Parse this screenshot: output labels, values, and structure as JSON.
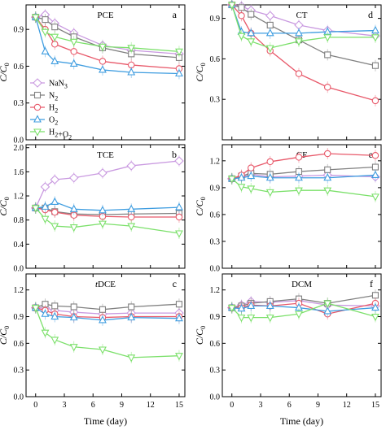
{
  "figure": {
    "ylabel": "C/C0",
    "xlabel": "Time (day)"
  },
  "series_styles": [
    {
      "name": "NaN3",
      "color": "#c999e0",
      "marker": "diamond"
    },
    {
      "name": "N2",
      "color": "#808080",
      "marker": "square"
    },
    {
      "name": "H2",
      "color": "#e8596a",
      "marker": "circle"
    },
    {
      "name": "O2",
      "color": "#3f9de0",
      "marker": "triangle-up"
    },
    {
      "name": "H2+O2",
      "color": "#7be06a",
      "marker": "triangle-down"
    }
  ],
  "chart_data": [
    {
      "type": "line",
      "title": "PCE",
      "panel_letter": "a",
      "x": [
        0,
        1,
        2,
        4,
        7,
        10,
        15
      ],
      "xticks": [
        0,
        3,
        6,
        9,
        12,
        15
      ],
      "ylim": [
        0,
        1.1
      ],
      "yticks": [
        0.0,
        0.3,
        0.6,
        0.9
      ],
      "legend": "left",
      "series": [
        {
          "name": "NaN3",
          "values": [
            1.0,
            1.02,
            0.95,
            0.87,
            0.77,
            0.73,
            0.7
          ]
        },
        {
          "name": "N2",
          "values": [
            1.0,
            0.98,
            0.92,
            0.84,
            0.75,
            0.7,
            0.67
          ]
        },
        {
          "name": "H2",
          "values": [
            1.0,
            0.9,
            0.78,
            0.72,
            0.64,
            0.61,
            0.58
          ]
        },
        {
          "name": "O2",
          "values": [
            1.0,
            0.72,
            0.64,
            0.62,
            0.57,
            0.55,
            0.54
          ]
        },
        {
          "name": "H2+O2",
          "values": [
            1.0,
            0.88,
            0.84,
            0.8,
            0.76,
            0.75,
            0.72
          ]
        }
      ]
    },
    {
      "type": "line",
      "title": "CT",
      "panel_letter": "d",
      "x": [
        0,
        1,
        2,
        4,
        7,
        10,
        15
      ],
      "xticks": [
        0,
        3,
        6,
        9,
        12,
        15
      ],
      "ylim": [
        0,
        1.0
      ],
      "yticks": [
        0.3,
        0.6,
        0.9
      ],
      "series": [
        {
          "name": "NaN3",
          "values": [
            1.0,
            0.99,
            0.96,
            0.92,
            0.85,
            0.81,
            0.77
          ]
        },
        {
          "name": "N2",
          "values": [
            1.0,
            0.98,
            0.93,
            0.85,
            0.74,
            0.63,
            0.55
          ]
        },
        {
          "name": "H2",
          "values": [
            1.0,
            0.92,
            0.79,
            0.66,
            0.49,
            0.39,
            0.29
          ]
        },
        {
          "name": "O2",
          "values": [
            1.0,
            0.8,
            0.79,
            0.79,
            0.79,
            0.8,
            0.81
          ]
        },
        {
          "name": "H2+O2",
          "values": [
            1.0,
            0.77,
            0.73,
            0.68,
            0.73,
            0.76,
            0.76
          ]
        }
      ]
    },
    {
      "type": "line",
      "title": "TCE",
      "panel_letter": "b",
      "x": [
        0,
        1,
        2,
        4,
        7,
        10,
        15
      ],
      "xticks": [
        0,
        3,
        6,
        9,
        12,
        15
      ],
      "ylim": [
        0,
        2.05
      ],
      "yticks": [
        0.0,
        0.4,
        0.8,
        1.2,
        1.6,
        2.0
      ],
      "series": [
        {
          "name": "NaN3",
          "values": [
            1.0,
            1.35,
            1.47,
            1.5,
            1.58,
            1.7,
            1.78
          ]
        },
        {
          "name": "N2",
          "values": [
            1.0,
            1.0,
            0.94,
            0.9,
            0.89,
            0.9,
            0.91
          ]
        },
        {
          "name": "H2",
          "values": [
            1.0,
            0.97,
            0.93,
            0.88,
            0.86,
            0.85,
            0.85
          ]
        },
        {
          "name": "O2",
          "values": [
            1.0,
            1.02,
            1.1,
            0.98,
            0.96,
            0.98,
            1.01
          ]
        },
        {
          "name": "H2+O2",
          "values": [
            1.0,
            0.82,
            0.7,
            0.68,
            0.74,
            0.7,
            0.58
          ]
        }
      ]
    },
    {
      "type": "line",
      "title": "CF",
      "panel_letter": "e",
      "x": [
        0,
        1,
        2,
        4,
        7,
        10,
        15
      ],
      "xticks": [
        0,
        3,
        6,
        9,
        12,
        15
      ],
      "ylim": [
        0,
        1.38
      ],
      "yticks": [
        0.0,
        0.3,
        0.6,
        0.9,
        1.2
      ],
      "series": [
        {
          "name": "NaN3",
          "values": [
            1.0,
            1.02,
            1.05,
            1.02,
            1.03,
            1.04,
            1.02
          ]
        },
        {
          "name": "N2",
          "values": [
            1.0,
            1.03,
            1.06,
            1.05,
            1.08,
            1.1,
            1.13
          ]
        },
        {
          "name": "H2",
          "values": [
            1.0,
            1.04,
            1.12,
            1.19,
            1.24,
            1.28,
            1.26
          ]
        },
        {
          "name": "O2",
          "values": [
            1.0,
            1.01,
            1.03,
            1.01,
            1.01,
            1.01,
            1.04
          ]
        },
        {
          "name": "H2+O2",
          "values": [
            1.0,
            0.91,
            0.89,
            0.85,
            0.87,
            0.87,
            0.8
          ]
        }
      ]
    },
    {
      "type": "line",
      "title": "tDCE",
      "panel_letter": "c",
      "x": [
        0,
        1,
        2,
        4,
        7,
        10,
        15
      ],
      "xticks": [
        0,
        3,
        6,
        9,
        12,
        15
      ],
      "ylim": [
        0,
        1.38
      ],
      "yticks": [
        0.0,
        0.3,
        0.6,
        0.9,
        1.2
      ],
      "series": [
        {
          "name": "NaN3",
          "values": [
            1.0,
            1.0,
            0.97,
            0.95,
            0.93,
            0.94,
            0.94
          ]
        },
        {
          "name": "N2",
          "values": [
            1.0,
            1.04,
            1.02,
            1.01,
            0.98,
            1.01,
            1.04
          ]
        },
        {
          "name": "H2",
          "values": [
            1.0,
            0.97,
            0.93,
            0.9,
            0.89,
            0.9,
            0.9
          ]
        },
        {
          "name": "O2",
          "values": [
            1.0,
            0.93,
            0.9,
            0.89,
            0.86,
            0.89,
            0.88
          ]
        },
        {
          "name": "H2+O2",
          "values": [
            1.0,
            0.72,
            0.64,
            0.56,
            0.53,
            0.44,
            0.46
          ]
        }
      ]
    },
    {
      "type": "line",
      "title": "DCM",
      "panel_letter": "f",
      "x": [
        0,
        1,
        2,
        4,
        7,
        10,
        15
      ],
      "xticks": [
        0,
        3,
        6,
        9,
        12,
        15
      ],
      "ylim": [
        0,
        1.38
      ],
      "yticks": [
        0.0,
        0.3,
        0.6,
        0.9,
        1.2
      ],
      "series": [
        {
          "name": "NaN3",
          "values": [
            1.0,
            1.03,
            1.07,
            1.06,
            1.08,
            1.03,
            1.02
          ]
        },
        {
          "name": "N2",
          "values": [
            1.0,
            1.02,
            1.05,
            1.07,
            1.1,
            1.05,
            1.14
          ]
        },
        {
          "name": "H2",
          "values": [
            1.0,
            1.0,
            1.03,
            1.02,
            1.05,
            0.93,
            1.05
          ]
        },
        {
          "name": "O2",
          "values": [
            1.0,
            0.99,
            1.02,
            1.02,
            1.0,
            0.96,
            1.0
          ]
        },
        {
          "name": "H2+O2",
          "values": [
            1.0,
            0.89,
            0.89,
            0.89,
            0.93,
            1.05,
            0.9
          ]
        }
      ]
    }
  ]
}
